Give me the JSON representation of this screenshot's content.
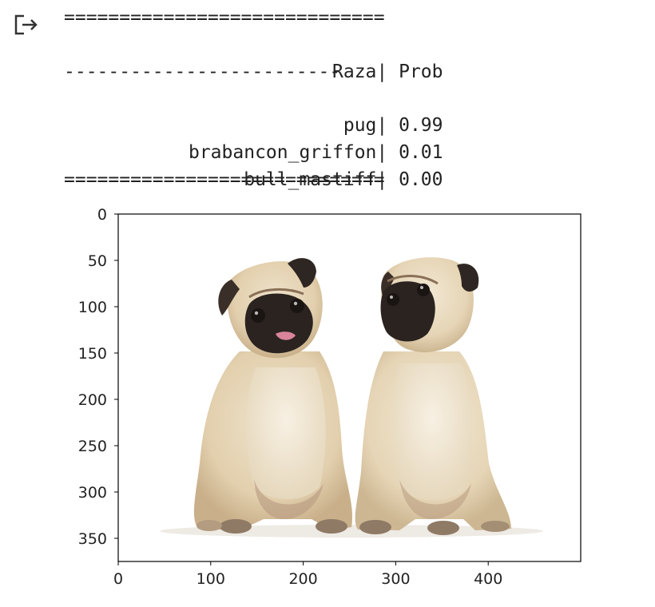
{
  "output_cell": {
    "icon": "output-redirect-icon",
    "table": {
      "rule_top": "=============================",
      "header": {
        "left": "Raza",
        "sep": "|",
        "right": " Prob"
      },
      "rule_mid": "-------------------------",
      "rows": [
        {
          "left": "pug",
          "sep": "|",
          "right": " 0.99"
        },
        {
          "left": "brabancon_griffon",
          "sep": "|",
          "right": " 0.01"
        },
        {
          "left": "bull_mastiff",
          "sep": "|",
          "right": " 0.00"
        }
      ],
      "rule_bottom": "============================="
    }
  },
  "chart_data": {
    "type": "image",
    "description_visible": "plot of input image",
    "y_ticks": [
      "0",
      "50",
      "100",
      "150",
      "200",
      "250",
      "300",
      "350"
    ],
    "x_ticks": [
      "0",
      "100",
      "200",
      "300",
      "400"
    ],
    "xlim": [
      0,
      500
    ],
    "ylim": [
      375,
      0
    ],
    "y_tick_values": [
      0,
      50,
      100,
      150,
      200,
      250,
      300,
      350
    ],
    "x_tick_values": [
      0,
      100,
      200,
      300,
      400
    ],
    "image_subject": "two-pug-dogs-sitting"
  }
}
